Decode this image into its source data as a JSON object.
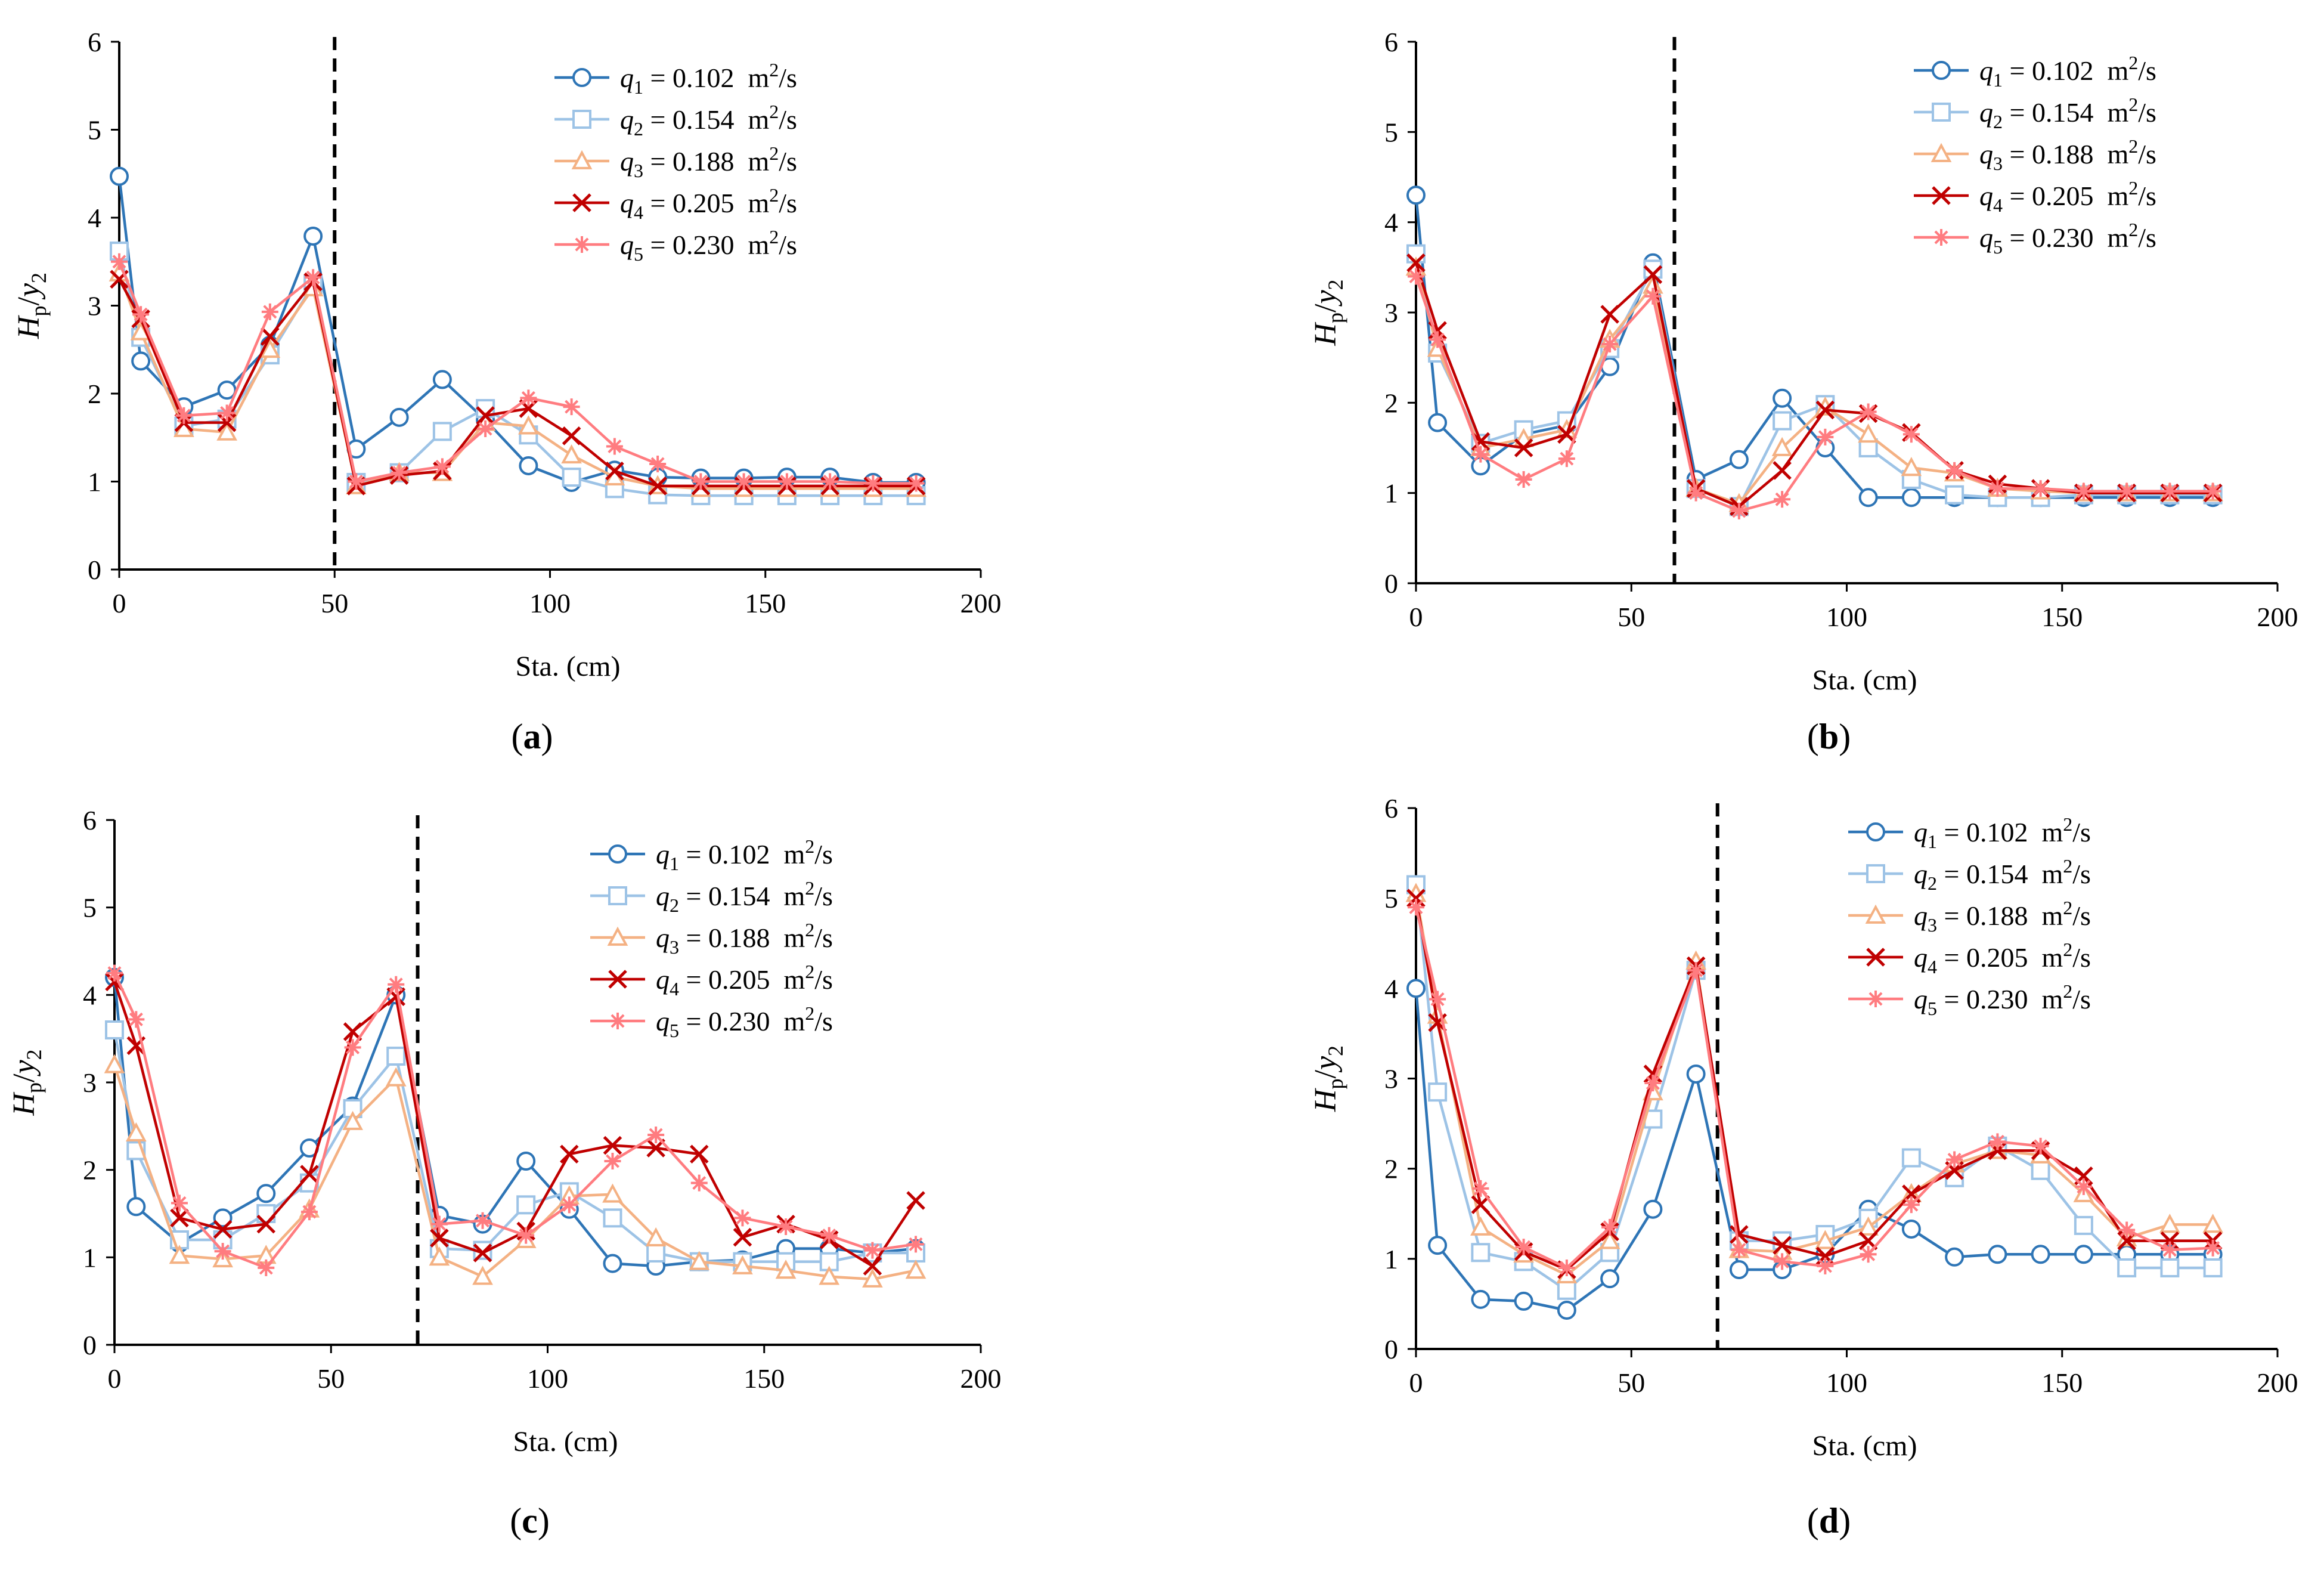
{
  "chart_data": [
    {
      "type": "line",
      "panel_label": "a",
      "xlabel": "Sta. (cm)",
      "ylabel": {
        "main": "H",
        "sub1": "p",
        "sep": "/",
        "var2": "y",
        "sub2": "2"
      },
      "xlim": [
        0,
        200
      ],
      "ylim": [
        0,
        6
      ],
      "x_ticks": [
        "0",
        "50",
        "100",
        "150",
        "200"
      ],
      "y_ticks": [
        "0",
        "1",
        "2",
        "3",
        "4",
        "5",
        "6"
      ],
      "grid": false,
      "legend_position": "top-right",
      "divider_x": 50,
      "x": [
        0,
        5,
        15,
        25,
        35,
        45,
        55,
        65,
        75,
        85,
        95,
        105,
        115,
        125,
        135,
        145,
        155,
        165,
        175,
        185
      ],
      "series": [
        {
          "var": "q",
          "sub": "1",
          "value": "0.102",
          "unit": "m",
          "unit_sup": "2",
          "unit_tail": "/s",
          "color": "#2e75b6",
          "marker": "circle",
          "values": [
            4.47,
            2.37,
            1.85,
            2.04,
            2.55,
            3.79,
            1.37,
            1.73,
            2.16,
            1.7,
            1.18,
            0.99,
            1.13,
            1.05,
            1.04,
            1.04,
            1.05,
            1.05,
            0.99,
            0.99
          ]
        },
        {
          "var": "q",
          "sub": "2",
          "value": "0.154",
          "unit": "m",
          "unit_sup": "2",
          "unit_tail": "/s",
          "color": "#9dc3e6",
          "marker": "square",
          "values": [
            3.62,
            2.64,
            1.63,
            1.71,
            2.44,
            3.24,
            0.99,
            1.1,
            1.57,
            1.83,
            1.53,
            1.05,
            0.92,
            0.85,
            0.84,
            0.84,
            0.84,
            0.84,
            0.84,
            0.84
          ]
        },
        {
          "var": "q",
          "sub": "3",
          "value": "0.188",
          "unit": "m",
          "unit_sup": "2",
          "unit_tail": "/s",
          "color": "#f4b183",
          "marker": "triangle",
          "values": [
            3.37,
            2.7,
            1.6,
            1.56,
            2.5,
            3.2,
            0.95,
            1.1,
            1.1,
            1.67,
            1.63,
            1.3,
            1.05,
            0.95,
            0.92,
            0.92,
            0.92,
            0.92,
            0.92,
            0.92
          ]
        },
        {
          "var": "q",
          "sub": "4",
          "value": "0.205",
          "unit": "m",
          "unit_sup": "2",
          "unit_tail": "/s",
          "color": "#c00000",
          "marker": "x",
          "values": [
            3.3,
            2.85,
            1.67,
            1.67,
            2.65,
            3.27,
            0.95,
            1.07,
            1.12,
            1.75,
            1.83,
            1.52,
            1.12,
            0.95,
            0.95,
            0.95,
            0.95,
            0.95,
            0.95,
            0.95
          ]
        },
        {
          "var": "q",
          "sub": "5",
          "value": "0.230",
          "unit": "m",
          "unit_sup": "2",
          "unit_tail": "/s",
          "color": "#ff7c80",
          "marker": "star",
          "values": [
            3.5,
            2.9,
            1.75,
            1.78,
            2.93,
            3.32,
            1.0,
            1.1,
            1.17,
            1.6,
            1.95,
            1.85,
            1.4,
            1.2,
            1.0,
            1.0,
            1.0,
            1.0,
            0.98,
            0.98
          ]
        }
      ]
    },
    {
      "type": "line",
      "panel_label": "b",
      "xlabel": "Sta. (cm)",
      "ylabel": {
        "main": "H",
        "sub1": "p",
        "sep": "/",
        "var2": "y",
        "sub2": "2"
      },
      "xlim": [
        0,
        200
      ],
      "ylim": [
        0,
        6
      ],
      "x_ticks": [
        "0",
        "50",
        "100",
        "150",
        "200"
      ],
      "y_ticks": [
        "0",
        "1",
        "2",
        "3",
        "4",
        "5",
        "6"
      ],
      "grid": false,
      "legend_position": "top-right",
      "divider_x": 60,
      "x": [
        0,
        5,
        15,
        25,
        35,
        45,
        55,
        65,
        75,
        85,
        95,
        105,
        115,
        125,
        135,
        145,
        155,
        165,
        175,
        185
      ],
      "series": [
        {
          "var": "q",
          "sub": "1",
          "value": "0.102",
          "unit": "m",
          "unit_sup": "2",
          "unit_tail": "/s",
          "color": "#2e75b6",
          "marker": "circle",
          "values": [
            4.3,
            1.78,
            1.3,
            1.65,
            1.75,
            2.4,
            3.55,
            1.15,
            1.37,
            2.05,
            1.5,
            0.95,
            0.95,
            0.95,
            0.95,
            0.95,
            0.95,
            0.95,
            0.95,
            0.95
          ]
        },
        {
          "var": "q",
          "sub": "2",
          "value": "0.154",
          "unit": "m",
          "unit_sup": "2",
          "unit_tail": "/s",
          "color": "#9dc3e6",
          "marker": "square",
          "values": [
            3.65,
            2.55,
            1.55,
            1.7,
            1.8,
            2.6,
            3.48,
            1.05,
            0.85,
            1.8,
            1.98,
            1.5,
            1.15,
            0.98,
            0.95,
            0.95,
            0.98,
            0.98,
            0.98,
            0.98
          ]
        },
        {
          "var": "q",
          "sub": "3",
          "value": "0.188",
          "unit": "m",
          "unit_sup": "2",
          "unit_tail": "/s",
          "color": "#f4b183",
          "marker": "triangle",
          "values": [
            3.5,
            2.6,
            1.5,
            1.6,
            1.7,
            2.7,
            3.3,
            1.05,
            0.88,
            1.5,
            1.95,
            1.65,
            1.28,
            1.22,
            1.05,
            1.02,
            1.0,
            1.0,
            1.0,
            1.0
          ]
        },
        {
          "var": "q",
          "sub": "4",
          "value": "0.205",
          "unit": "m",
          "unit_sup": "2",
          "unit_tail": "/s",
          "color": "#c00000",
          "marker": "x",
          "values": [
            3.55,
            2.8,
            1.57,
            1.5,
            1.65,
            2.98,
            3.42,
            1.05,
            0.85,
            1.25,
            1.92,
            1.88,
            1.67,
            1.25,
            1.1,
            1.05,
            1.0,
            1.0,
            1.0,
            1.0
          ]
        },
        {
          "var": "q",
          "sub": "5",
          "value": "0.230",
          "unit": "m",
          "unit_sup": "2",
          "unit_tail": "/s",
          "color": "#ff7c80",
          "marker": "star",
          "values": [
            3.4,
            2.7,
            1.43,
            1.15,
            1.38,
            2.65,
            3.18,
            1.0,
            0.8,
            0.93,
            1.62,
            1.9,
            1.65,
            1.25,
            1.05,
            1.05,
            1.02,
            1.02,
            1.02,
            1.02
          ]
        }
      ]
    },
    {
      "type": "line",
      "panel_label": "c",
      "xlabel": "Sta. (cm)",
      "ylabel": {
        "main": "H",
        "sub1": "p",
        "sep": "/",
        "var2": "y",
        "sub2": "2"
      },
      "xlim": [
        0,
        200
      ],
      "ylim": [
        0,
        6
      ],
      "x_ticks": [
        "0",
        "50",
        "100",
        "150",
        "200"
      ],
      "y_ticks": [
        "0",
        "1",
        "2",
        "3",
        "4",
        "5",
        "6"
      ],
      "grid": false,
      "legend_position": "top-right",
      "divider_x": 70,
      "x": [
        0,
        5,
        15,
        25,
        35,
        45,
        55,
        65,
        75,
        85,
        95,
        105,
        115,
        125,
        135,
        145,
        155,
        165,
        175,
        185
      ],
      "series": [
        {
          "var": "q",
          "sub": "1",
          "value": "0.102",
          "unit": "m",
          "unit_sup": "2",
          "unit_tail": "/s",
          "color": "#2e75b6",
          "marker": "circle",
          "values": [
            4.2,
            1.58,
            1.16,
            1.45,
            1.73,
            2.25,
            2.73,
            4.0,
            1.48,
            1.38,
            2.1,
            1.55,
            0.93,
            0.9,
            0.95,
            0.97,
            1.1,
            1.1,
            1.05,
            1.1
          ]
        },
        {
          "var": "q",
          "sub": "2",
          "value": "0.154",
          "unit": "m",
          "unit_sup": "2",
          "unit_tail": "/s",
          "color": "#9dc3e6",
          "marker": "square",
          "values": [
            3.6,
            2.22,
            1.2,
            1.2,
            1.5,
            1.85,
            2.7,
            3.3,
            1.1,
            1.08,
            1.6,
            1.75,
            1.45,
            1.05,
            0.95,
            0.95,
            0.95,
            0.95,
            1.05,
            1.05
          ]
        },
        {
          "var": "q",
          "sub": "3",
          "value": "0.188",
          "unit": "m",
          "unit_sup": "2",
          "unit_tail": "/s",
          "color": "#f4b183",
          "marker": "triangle",
          "values": [
            3.2,
            2.42,
            1.02,
            0.98,
            1.02,
            1.55,
            2.55,
            3.05,
            1.0,
            0.78,
            1.2,
            1.7,
            1.72,
            1.22,
            0.95,
            0.9,
            0.85,
            0.78,
            0.75,
            0.85
          ]
        },
        {
          "var": "q",
          "sub": "4",
          "value": "0.205",
          "unit": "m",
          "unit_sup": "2",
          "unit_tail": "/s",
          "color": "#c00000",
          "marker": "x",
          "values": [
            4.15,
            3.42,
            1.45,
            1.32,
            1.38,
            1.95,
            3.58,
            3.98,
            1.22,
            1.05,
            1.3,
            2.18,
            2.28,
            2.25,
            2.18,
            1.23,
            1.38,
            1.2,
            0.9,
            1.65
          ]
        },
        {
          "var": "q",
          "sub": "5",
          "value": "0.230",
          "unit": "m",
          "unit_sup": "2",
          "unit_tail": "/s",
          "color": "#ff7c80",
          "marker": "star",
          "values": [
            4.25,
            3.72,
            1.62,
            1.07,
            0.88,
            1.52,
            3.4,
            4.12,
            1.38,
            1.42,
            1.25,
            1.6,
            2.1,
            2.4,
            1.85,
            1.45,
            1.35,
            1.25,
            1.08,
            1.15
          ]
        }
      ]
    },
    {
      "type": "line",
      "panel_label": "d",
      "xlabel": "Sta. (cm)",
      "ylabel": {
        "main": "H",
        "sub1": "p",
        "sep": "/",
        "var2": "y",
        "sub2": "2"
      },
      "xlim": [
        0,
        200
      ],
      "ylim": [
        0,
        6
      ],
      "x_ticks": [
        "0",
        "50",
        "100",
        "150",
        "200"
      ],
      "y_ticks": [
        "0",
        "1",
        "2",
        "3",
        "4",
        "5",
        "6"
      ],
      "grid": false,
      "legend_position": "top-right",
      "divider_x": 70,
      "x": [
        0,
        5,
        15,
        25,
        35,
        45,
        55,
        65,
        75,
        85,
        95,
        105,
        115,
        125,
        135,
        145,
        155,
        165,
        175,
        185
      ],
      "series": [
        {
          "var": "q",
          "sub": "1",
          "value": "0.102",
          "unit": "m",
          "unit_sup": "2",
          "unit_tail": "/s",
          "color": "#2e75b6",
          "marker": "circle",
          "values": [
            4.0,
            1.15,
            0.55,
            0.53,
            0.43,
            0.78,
            1.55,
            3.05,
            0.88,
            0.88,
            1.05,
            1.55,
            1.33,
            1.02,
            1.05,
            1.05,
            1.05,
            1.05,
            1.05,
            1.05
          ]
        },
        {
          "var": "q",
          "sub": "2",
          "value": "0.154",
          "unit": "m",
          "unit_sup": "2",
          "unit_tail": "/s",
          "color": "#9dc3e6",
          "marker": "square",
          "values": [
            5.15,
            2.85,
            1.07,
            0.97,
            0.65,
            1.07,
            2.55,
            4.2,
            1.2,
            1.2,
            1.27,
            1.45,
            2.12,
            1.9,
            2.25,
            1.98,
            1.37,
            0.9,
            0.9,
            0.9
          ]
        },
        {
          "var": "q",
          "sub": "3",
          "value": "0.188",
          "unit": "m",
          "unit_sup": "2",
          "unit_tail": "/s",
          "color": "#f4b183",
          "marker": "triangle",
          "values": [
            5.05,
            3.7,
            1.35,
            1.05,
            0.82,
            1.2,
            2.85,
            4.3,
            1.1,
            1.08,
            1.2,
            1.35,
            1.72,
            2.05,
            2.2,
            2.15,
            1.72,
            1.23,
            1.38,
            1.38
          ]
        },
        {
          "var": "q",
          "sub": "4",
          "value": "0.205",
          "unit": "m",
          "unit_sup": "2",
          "unit_tail": "/s",
          "color": "#c00000",
          "marker": "x",
          "values": [
            5.0,
            3.62,
            1.6,
            1.08,
            0.88,
            1.3,
            3.05,
            4.25,
            1.27,
            1.15,
            1.03,
            1.2,
            1.72,
            1.98,
            2.2,
            2.2,
            1.92,
            1.2,
            1.2,
            1.2
          ]
        },
        {
          "var": "q",
          "sub": "5",
          "value": "0.230",
          "unit": "m",
          "unit_sup": "2",
          "unit_tail": "/s",
          "color": "#ff7c80",
          "marker": "star",
          "values": [
            4.9,
            3.88,
            1.78,
            1.13,
            0.9,
            1.35,
            2.95,
            4.2,
            1.1,
            0.97,
            0.92,
            1.05,
            1.6,
            2.1,
            2.3,
            2.25,
            1.8,
            1.32,
            1.1,
            1.12
          ]
        }
      ]
    }
  ]
}
